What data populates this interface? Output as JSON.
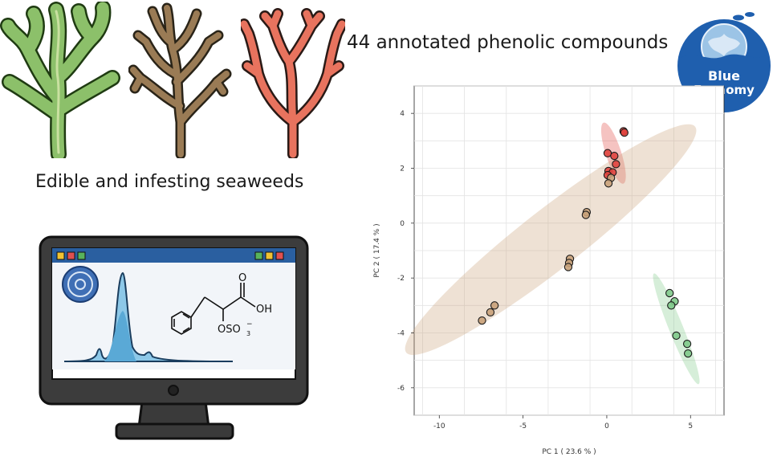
{
  "figure": {
    "headline": "44 annotated phenolic compounds",
    "seaweed_caption": "Edible and infesting seaweeds"
  },
  "badge": {
    "line1": "Blue",
    "line2": "Economy"
  },
  "monitor": {
    "chem_label_oh": "OH",
    "chem_label_o": "O",
    "chem_label_oso3": "OSO",
    "chem_label_sub": "3",
    "chem_label_sup": "−"
  },
  "colors": {
    "green_group": "#7fc98a",
    "brown_group": "#c9a27a",
    "red_group": "#e0443e",
    "monitor_blue": "#2a5fa0",
    "peak_blue": "#5aa9d6",
    "badge_blue": "#1f5fae"
  },
  "chart_data": {
    "type": "scatter",
    "xlabel": "PC 1 ( 23.6 % )",
    "ylabel": "PC 2 ( 17.4 % )",
    "xlim": [
      -11.5,
      7
    ],
    "ylim": [
      -7,
      5
    ],
    "xticks": [
      -10,
      -5,
      0,
      5
    ],
    "yticks": [
      4,
      2,
      0,
      -2,
      -4,
      -6
    ],
    "grid": true,
    "series": [
      {
        "color": "#e0443e",
        "points": [
          [
            1.0,
            3.35
          ],
          [
            1.05,
            3.3
          ],
          [
            0.05,
            2.55
          ],
          [
            0.45,
            2.45
          ],
          [
            0.55,
            2.15
          ],
          [
            0.1,
            1.9
          ],
          [
            0.35,
            1.85
          ],
          [
            0.05,
            1.75
          ]
        ],
        "ellipse": {
          "cx": 0.4,
          "cy": 2.55,
          "rx": 1.45,
          "ry": 0.35,
          "angle": -72
        }
      },
      {
        "color": "#c9a27a",
        "points": [
          [
            0.25,
            1.65
          ],
          [
            0.1,
            1.45
          ],
          [
            -1.2,
            0.4
          ],
          [
            -1.25,
            0.3
          ],
          [
            -2.2,
            -1.3
          ],
          [
            -2.25,
            -1.45
          ],
          [
            -2.3,
            -1.6
          ],
          [
            -6.7,
            -3.0
          ],
          [
            -6.95,
            -3.25
          ],
          [
            -7.45,
            -3.55
          ]
        ],
        "ellipse": {
          "cx": -3.35,
          "cy": -0.6,
          "rx": 8.3,
          "ry": 1.35,
          "angle": 38
        }
      },
      {
        "color": "#7fc98a",
        "points": [
          [
            3.75,
            -2.55
          ],
          [
            4.05,
            -2.85
          ],
          [
            3.85,
            -3.0
          ],
          [
            4.15,
            -4.1
          ],
          [
            4.8,
            -4.4
          ],
          [
            4.85,
            -4.75
          ]
        ],
        "ellipse": {
          "cx": 4.15,
          "cy": -3.85,
          "rx": 2.7,
          "ry": 0.32,
          "angle": -68
        }
      }
    ]
  }
}
